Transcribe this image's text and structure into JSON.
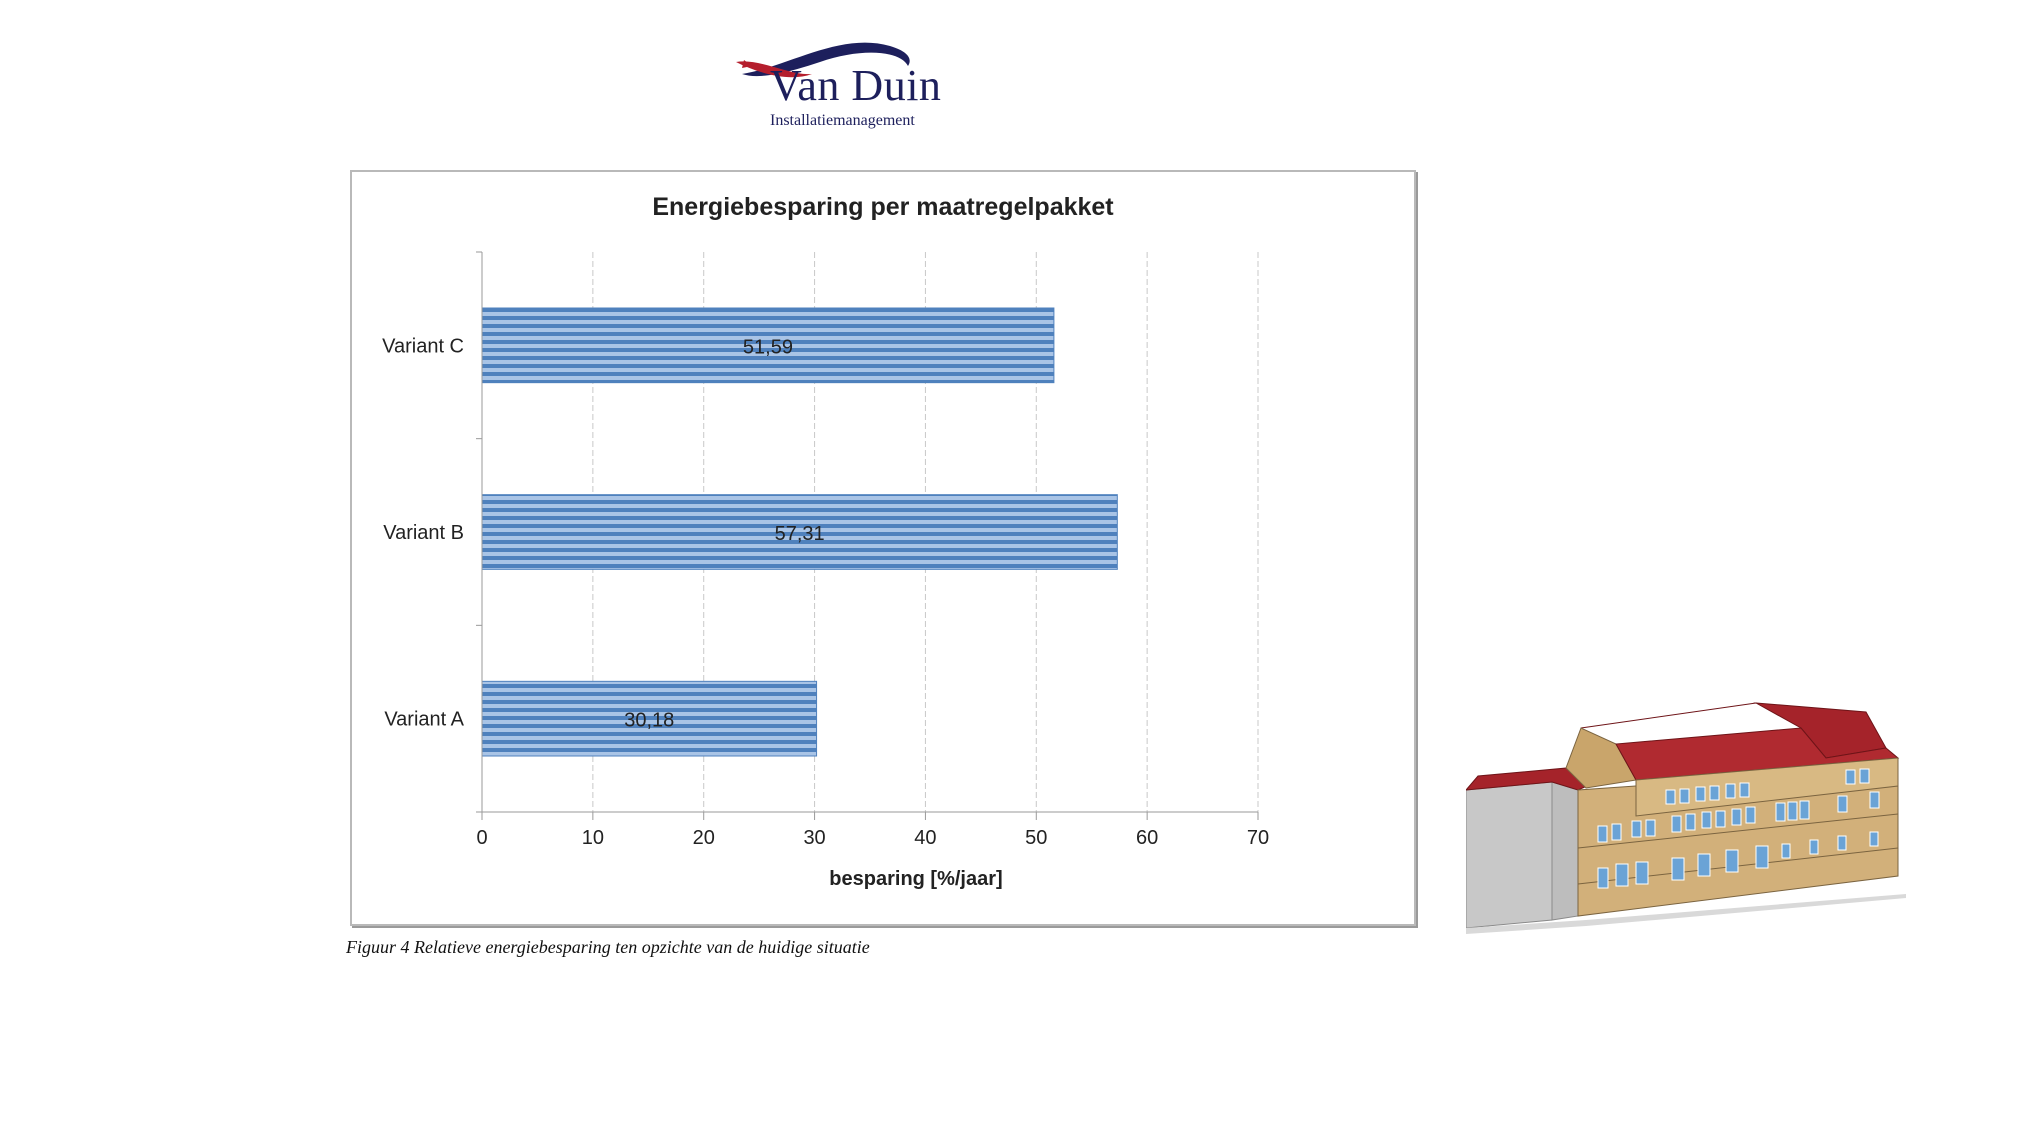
{
  "logo": {
    "name": "Van Duin",
    "subtitle": "Installatiemanagement",
    "colors": {
      "navy": "#1d1f5c",
      "red": "#b51e2d"
    }
  },
  "chart_data": {
    "type": "bar",
    "orientation": "horizontal",
    "title": "Energiebesparing per maatregelpakket",
    "xlabel": "besparing [%/jaar]",
    "ylabel": "",
    "categories": [
      "Variant A",
      "Variant B",
      "Variant C"
    ],
    "values": [
      30.18,
      57.31,
      51.59
    ],
    "value_labels": [
      "30,18",
      "57,31",
      "51,59"
    ],
    "xlim": [
      0,
      70
    ],
    "xticks": [
      0,
      10,
      20,
      30,
      40,
      50,
      60,
      70
    ],
    "grid": true,
    "legend": "none",
    "bar_color": "#4f81bd",
    "bar_stripe_color": "#a9c4e6"
  },
  "caption": "Figuur 4  Relatieve energiebesparing ten opzichte van de huidige situatie",
  "illustration": {
    "subject": "building-3d-model",
    "colors": {
      "wall": "#d2b07a",
      "roof": "#a5232a",
      "side": "#c8c8c8",
      "window": "#6aa3d6"
    }
  }
}
